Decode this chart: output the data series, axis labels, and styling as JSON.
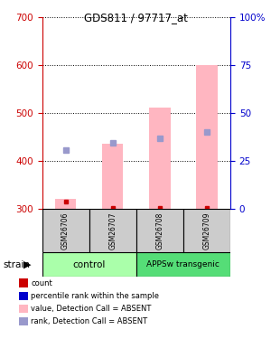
{
  "title": "GDS811 / 97717_at",
  "samples": [
    "GSM26706",
    "GSM26707",
    "GSM26708",
    "GSM26709"
  ],
  "ylim_left": [
    300,
    700
  ],
  "ylim_right": [
    0,
    100
  ],
  "yticks_left": [
    300,
    400,
    500,
    600,
    700
  ],
  "yticks_right": [
    0,
    25,
    50,
    75,
    100
  ],
  "right_tick_labels": [
    "0",
    "25",
    "50",
    "75",
    "100%"
  ],
  "pink_bar_tops": [
    320,
    435,
    510,
    600
  ],
  "pink_bar_base": 300,
  "blue_square_values": [
    422,
    437,
    446,
    460
  ],
  "red_square_values": [
    314,
    302,
    302,
    302
  ],
  "bar_color": "#FFB6C1",
  "blue_sq_color": "#9999CC",
  "red_sq_color": "#CC0000",
  "dark_green": "#55DD77",
  "light_green": "#AAFFAA",
  "left_axis_color": "#CC0000",
  "right_axis_color": "#0000CC",
  "sample_box_color": "#CCCCCC",
  "legend_items": [
    {
      "color": "#CC0000",
      "label": "count"
    },
    {
      "color": "#0000CC",
      "label": "percentile rank within the sample"
    },
    {
      "color": "#FFB6C1",
      "label": "value, Detection Call = ABSENT"
    },
    {
      "color": "#9999CC",
      "label": "rank, Detection Call = ABSENT"
    }
  ],
  "control_label": "control",
  "transgenic_label": "APPSw transgenic",
  "strain_label": "strain"
}
